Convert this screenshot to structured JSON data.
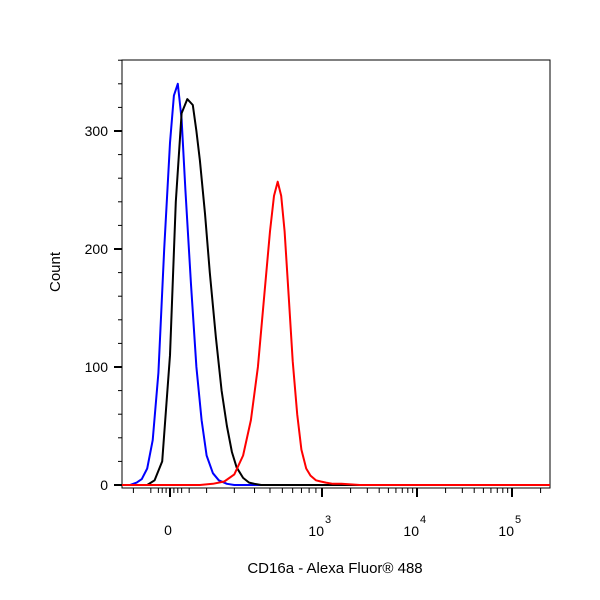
{
  "chart_data": {
    "type": "line",
    "title": "",
    "xlabel": "CD16a - Alexa Fluor® 488",
    "ylabel": "Count",
    "ylim": [
      0,
      360
    ],
    "y_ticks": [
      {
        "value": 0,
        "label": "0"
      },
      {
        "value": 100,
        "label": "100"
      },
      {
        "value": 200,
        "label": "200"
      },
      {
        "value": 300,
        "label": "300"
      }
    ],
    "x_scale": "biexponential",
    "x_ticks": [
      {
        "value": 0,
        "base": "0",
        "exp": ""
      },
      {
        "value": 1000,
        "base": "10",
        "exp": "3"
      },
      {
        "value": 10000,
        "base": "10",
        "exp": "4"
      },
      {
        "value": 100000,
        "base": "10",
        "exp": "5"
      }
    ],
    "grid": false,
    "legend": "none",
    "series": [
      {
        "color": "#0000ff",
        "x": [
          -110,
          -90,
          -75,
          -60,
          -45,
          -30,
          -15,
          0,
          10,
          20,
          30,
          40,
          55,
          70,
          85,
          100,
          120,
          140,
          170,
          200
        ],
        "y": [
          0,
          2,
          5,
          14,
          38,
          95,
          200,
          290,
          330,
          340,
          310,
          250,
          170,
          100,
          55,
          25,
          10,
          4,
          1,
          0
        ]
      },
      {
        "color": "#000000",
        "x": [
          -60,
          -40,
          -20,
          0,
          15,
          30,
          45,
          60,
          70,
          80,
          95,
          110,
          130,
          150,
          170,
          190,
          210,
          240,
          270,
          300,
          340
        ],
        "y": [
          0,
          4,
          20,
          110,
          240,
          315,
          327,
          322,
          300,
          275,
          230,
          180,
          125,
          80,
          50,
          28,
          15,
          6,
          2,
          1,
          0
        ]
      },
      {
        "color": "#ff0000",
        "x": [
          80,
          120,
          160,
          200,
          240,
          280,
          320,
          360,
          400,
          430,
          460,
          490,
          520,
          560,
          600,
          650,
          700,
          760,
          820,
          900,
          980,
          1100,
          1300,
          1600,
          2500,
          10000,
          200000
        ],
        "y": [
          0,
          1,
          3,
          9,
          25,
          55,
          100,
          160,
          215,
          245,
          257,
          245,
          215,
          160,
          105,
          60,
          30,
          14,
          8,
          4,
          3,
          2,
          1,
          1,
          0,
          0,
          0
        ]
      }
    ]
  }
}
